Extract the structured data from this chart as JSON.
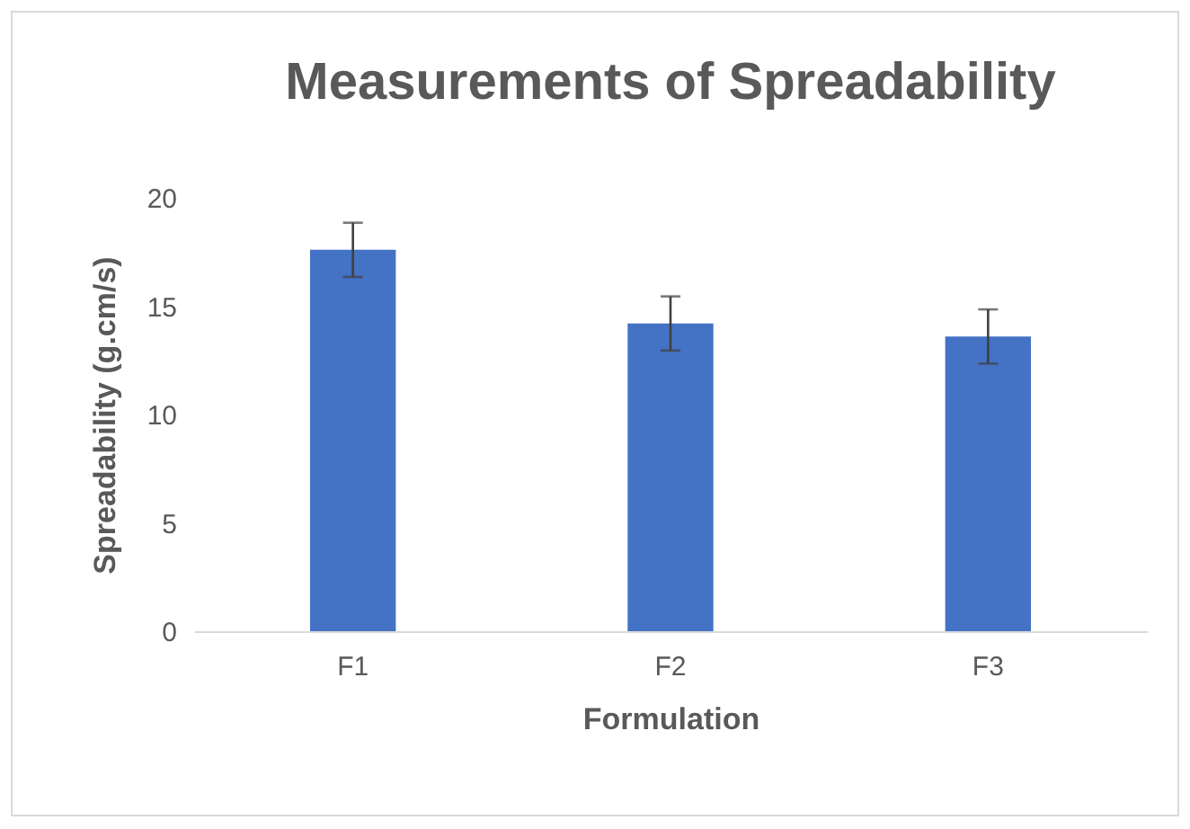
{
  "chart_data": {
    "type": "bar",
    "title": "Measurements of Spreadability",
    "xlabel": "Formulation",
    "ylabel": "Spreadability (g.cm/s)",
    "categories": [
      "F1",
      "F2",
      "F3"
    ],
    "values": [
      17.6,
      14.2,
      13.6
    ],
    "errors": [
      1.25,
      1.25,
      1.25
    ],
    "color": "#4472c4",
    "ylim": [
      0,
      20
    ],
    "yticks": [
      0,
      5,
      10,
      15,
      20
    ],
    "grid": false
  }
}
